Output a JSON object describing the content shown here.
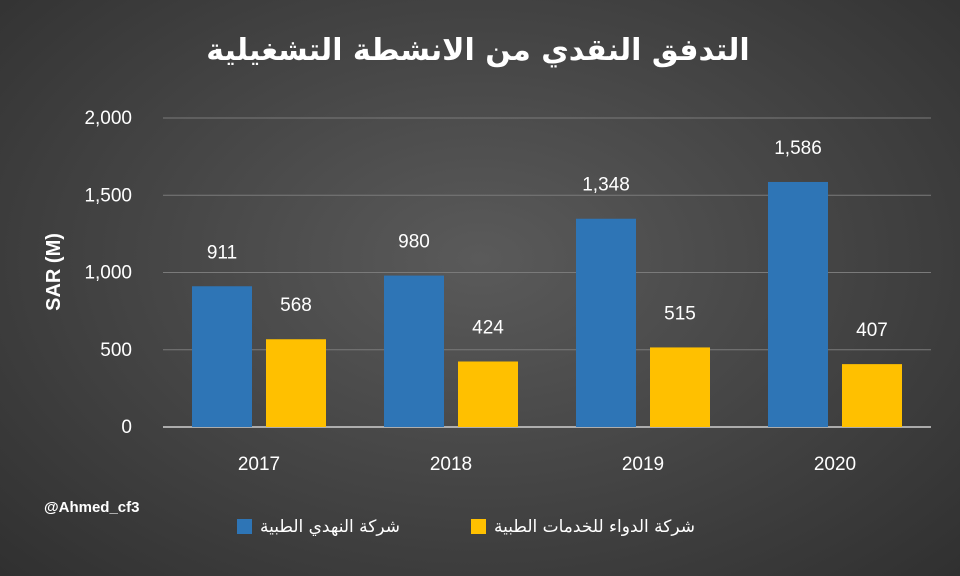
{
  "watermark": "@Ahmed_cf3",
  "chart_data": {
    "type": "bar",
    "title": "التدفق النقدي من الانشطة التشغيلية",
    "ylabel": "SAR (M)",
    "xlabel": "",
    "categories": [
      "2017",
      "2018",
      "2019",
      "2020"
    ],
    "ylim": [
      0,
      2000
    ],
    "yticks": [
      "0",
      "500",
      "1,000",
      "1,500",
      "2,000"
    ],
    "ytick_values": [
      0,
      500,
      1000,
      1500,
      2000
    ],
    "grid": true,
    "legend_position": "bottom",
    "series": [
      {
        "name": "شركة النهدي الطبية",
        "color": "#2e75b6",
        "values": [
          911,
          980,
          1348,
          1586
        ],
        "labels": [
          "911",
          "980",
          "1,348",
          "1,586"
        ]
      },
      {
        "name": "شركة الدواء للخدمات الطبية",
        "color": "#ffc000",
        "values": [
          568,
          424,
          515,
          407
        ],
        "labels": [
          "568",
          "424",
          "515",
          "407"
        ]
      }
    ]
  }
}
